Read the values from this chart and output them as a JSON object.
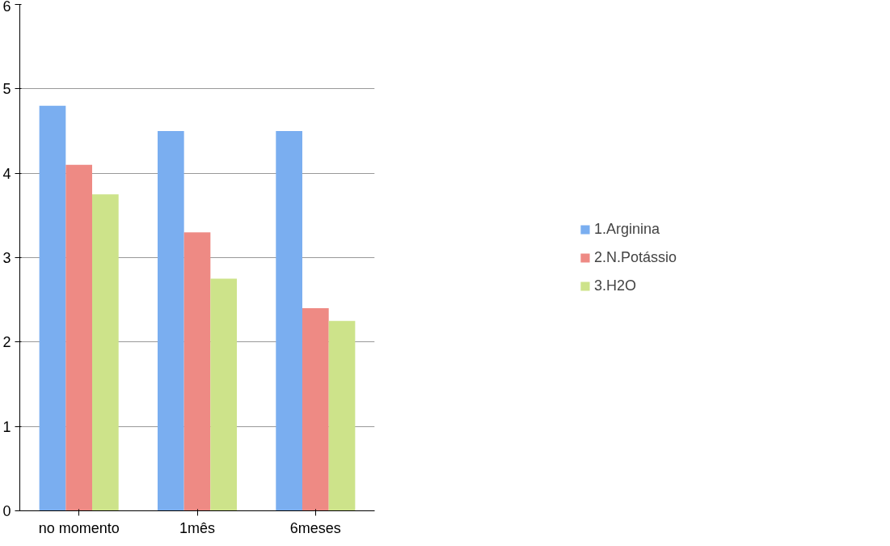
{
  "chart_data": {
    "type": "bar",
    "categories": [
      "no momento",
      "1mês",
      "6meses"
    ],
    "series": [
      {
        "name": "1.Arginina",
        "color": "#7aaef0",
        "values": [
          4.8,
          4.5,
          4.5
        ]
      },
      {
        "name": "2.N.Potássio",
        "color": "#ee8a84",
        "values": [
          4.1,
          3.3,
          2.4
        ]
      },
      {
        "name": "3.H2O",
        "color": "#cde38a",
        "values": [
          3.75,
          2.75,
          2.25
        ]
      }
    ],
    "ylim": [
      0,
      6
    ],
    "yticks": [
      0,
      1,
      2,
      3,
      4,
      5,
      6
    ],
    "grid": "y",
    "legend": "right"
  }
}
